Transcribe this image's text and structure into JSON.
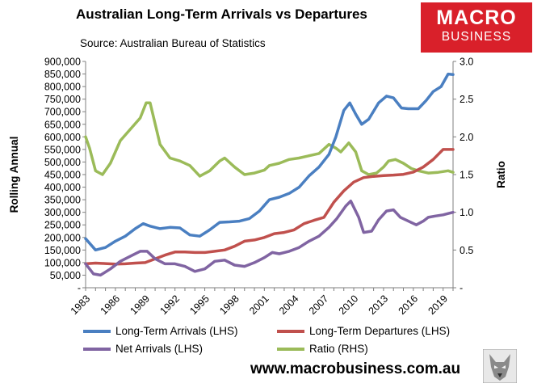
{
  "title": "Australian Long-Term Arrivals vs Departures",
  "source": "Source: Australian Bureau of Statistics",
  "logo": {
    "line1": "MACRO",
    "line2": "BUSINESS",
    "color": "#d9202a"
  },
  "website": "www.macrobusiness.com.au",
  "legend": [
    {
      "label": "Long-Term Arrivals (LHS)",
      "color": "#4a7fc1"
    },
    {
      "label": "Long-Term Departures (LHS)",
      "color": "#c0504d"
    },
    {
      "label": "Net Arrivals (LHS)",
      "color": "#8064a2"
    },
    {
      "label": "Ratio (RHS)",
      "color": "#9bbb59"
    }
  ],
  "chart_data": {
    "type": "line",
    "ylabel": "Rolling Annual",
    "y2label": "Ratio",
    "ylim": [
      0,
      900000
    ],
    "y2lim": [
      0,
      3.0
    ],
    "xlim": [
      1983,
      2020
    ],
    "yticks": [
      "-",
      "50,000",
      "100,000",
      "150,000",
      "200,000",
      "250,000",
      "300,000",
      "350,000",
      "400,000",
      "450,000",
      "500,000",
      "550,000",
      "600,000",
      "650,000",
      "700,000",
      "750,000",
      "800,000",
      "850,000",
      "900,000"
    ],
    "y2ticks": [
      "-",
      "0.5",
      "1.0",
      "1.5",
      "2.0",
      "2.5",
      "3.0"
    ],
    "xticks": [
      "1983",
      "1986",
      "1989",
      "1992",
      "1995",
      "1998",
      "2001",
      "2004",
      "2007",
      "2010",
      "2013",
      "2016",
      "2019"
    ],
    "series": [
      {
        "name": "Long-Term Arrivals (LHS)",
        "axis": "left",
        "color": "#4a7fc1",
        "x": [
          1983,
          1984,
          1985,
          1986,
          1987,
          1988,
          1988.8,
          1989.5,
          1990.5,
          1991.5,
          1992.5,
          1993.5,
          1994.5,
          1995.5,
          1996.5,
          1997.5,
          1998.5,
          1999.5,
          2000.5,
          2001.5,
          2002.5,
          2003.5,
          2004.5,
          2005.5,
          2006.5,
          2007.5,
          2008.2,
          2009,
          2009.6,
          2010.2,
          2010.8,
          2011.5,
          2012.5,
          2013.3,
          2014,
          2014.8,
          2015.5,
          2016.5,
          2017.3,
          2018,
          2018.8,
          2019.5,
          2020
        ],
        "y": [
          195000,
          150000,
          160000,
          185000,
          205000,
          235000,
          255000,
          245000,
          235000,
          240000,
          238000,
          210000,
          205000,
          230000,
          260000,
          262000,
          265000,
          275000,
          305000,
          350000,
          360000,
          375000,
          400000,
          445000,
          480000,
          530000,
          600000,
          705000,
          735000,
          690000,
          650000,
          670000,
          735000,
          762000,
          755000,
          715000,
          712000,
          712000,
          745000,
          780000,
          800000,
          850000,
          848000
        ]
      },
      {
        "name": "Long-Term Departures (LHS)",
        "axis": "left",
        "color": "#c0504d",
        "x": [
          1983,
          1984,
          1985,
          1986,
          1987,
          1988,
          1989,
          1990,
          1991,
          1992,
          1993,
          1994,
          1995,
          1996,
          1997,
          1998,
          1999,
          2000,
          2001,
          2002,
          2003,
          2004,
          2005,
          2006,
          2007,
          2008,
          2009,
          2010,
          2011,
          2012,
          2013,
          2014,
          2015,
          2016,
          2017,
          2018,
          2019,
          2020
        ],
        "y": [
          95000,
          98000,
          96000,
          94000,
          95000,
          98000,
          100000,
          115000,
          130000,
          142000,
          142000,
          140000,
          140000,
          145000,
          150000,
          165000,
          185000,
          190000,
          200000,
          215000,
          220000,
          230000,
          255000,
          268000,
          280000,
          340000,
          385000,
          420000,
          438000,
          443000,
          446000,
          448000,
          451000,
          460000,
          480000,
          510000,
          550000,
          550000
        ]
      },
      {
        "name": "Net Arrivals (LHS)",
        "axis": "left",
        "color": "#8064a2",
        "x": [
          1983,
          1983.8,
          1984.5,
          1985.5,
          1986.5,
          1987.5,
          1988.5,
          1989.2,
          1990,
          1991,
          1992,
          1993,
          1994,
          1995,
          1996,
          1997,
          1998,
          1999,
          2000,
          2001,
          2001.8,
          2002.5,
          2003.5,
          2004.5,
          2005.5,
          2006.5,
          2007.5,
          2008.3,
          2009.2,
          2009.7,
          2010.5,
          2011,
          2011.8,
          2012.5,
          2013.3,
          2014,
          2014.7,
          2015.5,
          2016.3,
          2017,
          2017.5,
          2018.2,
          2019,
          2019.5,
          2020
        ],
        "y": [
          95000,
          55000,
          50000,
          75000,
          105000,
          125000,
          145000,
          145000,
          115000,
          95000,
          95000,
          85000,
          65000,
          75000,
          105000,
          110000,
          90000,
          85000,
          100000,
          120000,
          140000,
          135000,
          145000,
          160000,
          185000,
          205000,
          240000,
          275000,
          325000,
          345000,
          280000,
          220000,
          225000,
          270000,
          305000,
          310000,
          280000,
          265000,
          250000,
          265000,
          280000,
          285000,
          290000,
          295000,
          300000
        ]
      },
      {
        "name": "Ratio (RHS)",
        "axis": "right",
        "color": "#9bbb59",
        "x": [
          1983,
          1983.4,
          1984,
          1984.7,
          1985.5,
          1986.5,
          1987.5,
          1988.5,
          1989.1,
          1989.5,
          1990.5,
          1991.5,
          1992.5,
          1993.5,
          1994.5,
          1995.5,
          1996.5,
          1997,
          1998,
          1999,
          2000,
          2001,
          2001.5,
          2002.5,
          2003.5,
          2004.5,
          2005.5,
          2006.5,
          2007.5,
          2008.2,
          2008.7,
          2009.5,
          2010.2,
          2010.8,
          2011.5,
          2012.3,
          2013,
          2013.5,
          2014.2,
          2015,
          2015.8,
          2016.5,
          2017.5,
          2018.5,
          2019.5,
          2020
        ],
        "y": [
          2.0,
          1.85,
          1.55,
          1.5,
          1.65,
          1.95,
          2.1,
          2.25,
          2.45,
          2.45,
          1.9,
          1.72,
          1.68,
          1.62,
          1.48,
          1.55,
          1.68,
          1.72,
          1.6,
          1.5,
          1.52,
          1.56,
          1.62,
          1.65,
          1.7,
          1.72,
          1.75,
          1.78,
          1.9,
          1.85,
          1.8,
          1.92,
          1.8,
          1.55,
          1.5,
          1.52,
          1.6,
          1.68,
          1.7,
          1.65,
          1.58,
          1.55,
          1.52,
          1.53,
          1.55,
          1.53
        ]
      }
    ]
  }
}
